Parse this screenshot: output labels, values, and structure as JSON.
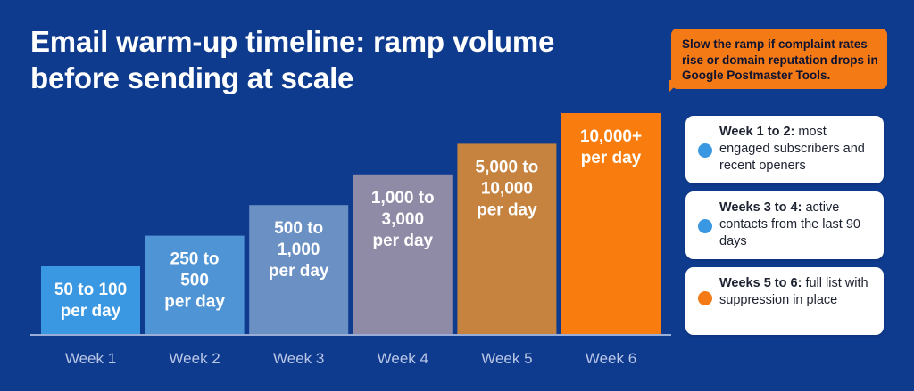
{
  "title": "Email warm-up timeline: ramp volume\nbefore sending at scale",
  "callout": "Slow the ramp if complaint rates rise or domain reputation drops in Google Postmaster Tools.",
  "chart_data": {
    "type": "bar",
    "categories": [
      "Week 1",
      "Week 2",
      "Week 3",
      "Week 4",
      "Week 5",
      "Week 6"
    ],
    "bar_labels": [
      [
        "50 to 100",
        "per day"
      ],
      [
        "250 to",
        "500",
        "per day"
      ],
      [
        "500 to",
        "1,000",
        "per day"
      ],
      [
        "1,000 to",
        "3,000",
        "per day"
      ],
      [
        "5,000 to",
        "10,000",
        "per day"
      ],
      [
        "10,000+",
        "per day"
      ]
    ],
    "values": [
      1,
      2,
      3,
      4,
      5,
      6
    ],
    "colors": [
      "#3a98e2",
      "#4f94d4",
      "#6b90c4",
      "#8f8aa6",
      "#c5833f",
      "#f97d0e"
    ],
    "title": "Email warm-up timeline: ramp volume before sending at scale",
    "xlabel": "",
    "ylabel": "",
    "grid": false,
    "legend": "right"
  },
  "legend": [
    {
      "lead": "Week 1 to 2:",
      "text": " most engaged subscribers and recent openers",
      "color": "#3a98e2"
    },
    {
      "lead": "Weeks 3 to 4:",
      "text": " active contacts from the last 90 days",
      "color": "#3a98e2"
    },
    {
      "lead": "Weeks 5 to 6:",
      "text": " full list with suppression in place",
      "color": "#f47a16"
    }
  ]
}
